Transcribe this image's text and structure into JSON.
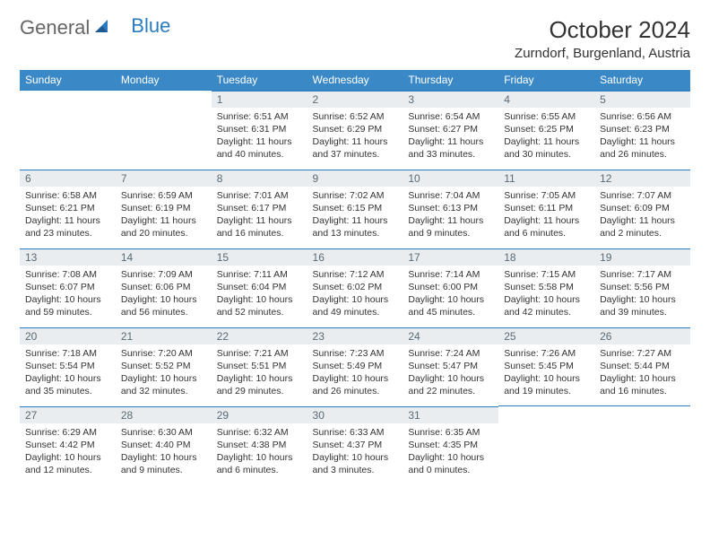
{
  "brand": {
    "part1": "General",
    "part2": "Blue"
  },
  "title": "October 2024",
  "location": "Zurndorf, Burgenland, Austria",
  "colors": {
    "header_bg": "#3b88c7",
    "header_text": "#ffffff",
    "daynum_bg": "#e9edef",
    "daynum_text": "#5c6a75",
    "row_border": "#2b7bbf",
    "brand_gray": "#666666",
    "brand_blue": "#2b7bbf",
    "body_text": "#333333",
    "page_bg": "#ffffff"
  },
  "weekdays": [
    "Sunday",
    "Monday",
    "Tuesday",
    "Wednesday",
    "Thursday",
    "Friday",
    "Saturday"
  ],
  "weeks": [
    [
      null,
      null,
      {
        "n": "1",
        "sr": "6:51 AM",
        "ss": "6:31 PM",
        "dl": "11 hours and 40 minutes."
      },
      {
        "n": "2",
        "sr": "6:52 AM",
        "ss": "6:29 PM",
        "dl": "11 hours and 37 minutes."
      },
      {
        "n": "3",
        "sr": "6:54 AM",
        "ss": "6:27 PM",
        "dl": "11 hours and 33 minutes."
      },
      {
        "n": "4",
        "sr": "6:55 AM",
        "ss": "6:25 PM",
        "dl": "11 hours and 30 minutes."
      },
      {
        "n": "5",
        "sr": "6:56 AM",
        "ss": "6:23 PM",
        "dl": "11 hours and 26 minutes."
      }
    ],
    [
      {
        "n": "6",
        "sr": "6:58 AM",
        "ss": "6:21 PM",
        "dl": "11 hours and 23 minutes."
      },
      {
        "n": "7",
        "sr": "6:59 AM",
        "ss": "6:19 PM",
        "dl": "11 hours and 20 minutes."
      },
      {
        "n": "8",
        "sr": "7:01 AM",
        "ss": "6:17 PM",
        "dl": "11 hours and 16 minutes."
      },
      {
        "n": "9",
        "sr": "7:02 AM",
        "ss": "6:15 PM",
        "dl": "11 hours and 13 minutes."
      },
      {
        "n": "10",
        "sr": "7:04 AM",
        "ss": "6:13 PM",
        "dl": "11 hours and 9 minutes."
      },
      {
        "n": "11",
        "sr": "7:05 AM",
        "ss": "6:11 PM",
        "dl": "11 hours and 6 minutes."
      },
      {
        "n": "12",
        "sr": "7:07 AM",
        "ss": "6:09 PM",
        "dl": "11 hours and 2 minutes."
      }
    ],
    [
      {
        "n": "13",
        "sr": "7:08 AM",
        "ss": "6:07 PM",
        "dl": "10 hours and 59 minutes."
      },
      {
        "n": "14",
        "sr": "7:09 AM",
        "ss": "6:06 PM",
        "dl": "10 hours and 56 minutes."
      },
      {
        "n": "15",
        "sr": "7:11 AM",
        "ss": "6:04 PM",
        "dl": "10 hours and 52 minutes."
      },
      {
        "n": "16",
        "sr": "7:12 AM",
        "ss": "6:02 PM",
        "dl": "10 hours and 49 minutes."
      },
      {
        "n": "17",
        "sr": "7:14 AM",
        "ss": "6:00 PM",
        "dl": "10 hours and 45 minutes."
      },
      {
        "n": "18",
        "sr": "7:15 AM",
        "ss": "5:58 PM",
        "dl": "10 hours and 42 minutes."
      },
      {
        "n": "19",
        "sr": "7:17 AM",
        "ss": "5:56 PM",
        "dl": "10 hours and 39 minutes."
      }
    ],
    [
      {
        "n": "20",
        "sr": "7:18 AM",
        "ss": "5:54 PM",
        "dl": "10 hours and 35 minutes."
      },
      {
        "n": "21",
        "sr": "7:20 AM",
        "ss": "5:52 PM",
        "dl": "10 hours and 32 minutes."
      },
      {
        "n": "22",
        "sr": "7:21 AM",
        "ss": "5:51 PM",
        "dl": "10 hours and 29 minutes."
      },
      {
        "n": "23",
        "sr": "7:23 AM",
        "ss": "5:49 PM",
        "dl": "10 hours and 26 minutes."
      },
      {
        "n": "24",
        "sr": "7:24 AM",
        "ss": "5:47 PM",
        "dl": "10 hours and 22 minutes."
      },
      {
        "n": "25",
        "sr": "7:26 AM",
        "ss": "5:45 PM",
        "dl": "10 hours and 19 minutes."
      },
      {
        "n": "26",
        "sr": "7:27 AM",
        "ss": "5:44 PM",
        "dl": "10 hours and 16 minutes."
      }
    ],
    [
      {
        "n": "27",
        "sr": "6:29 AM",
        "ss": "4:42 PM",
        "dl": "10 hours and 12 minutes."
      },
      {
        "n": "28",
        "sr": "6:30 AM",
        "ss": "4:40 PM",
        "dl": "10 hours and 9 minutes."
      },
      {
        "n": "29",
        "sr": "6:32 AM",
        "ss": "4:38 PM",
        "dl": "10 hours and 6 minutes."
      },
      {
        "n": "30",
        "sr": "6:33 AM",
        "ss": "4:37 PM",
        "dl": "10 hours and 3 minutes."
      },
      {
        "n": "31",
        "sr": "6:35 AM",
        "ss": "4:35 PM",
        "dl": "10 hours and 0 minutes."
      },
      null,
      null
    ]
  ],
  "labels": {
    "sunrise": "Sunrise:",
    "sunset": "Sunset:",
    "daylight": "Daylight:"
  }
}
